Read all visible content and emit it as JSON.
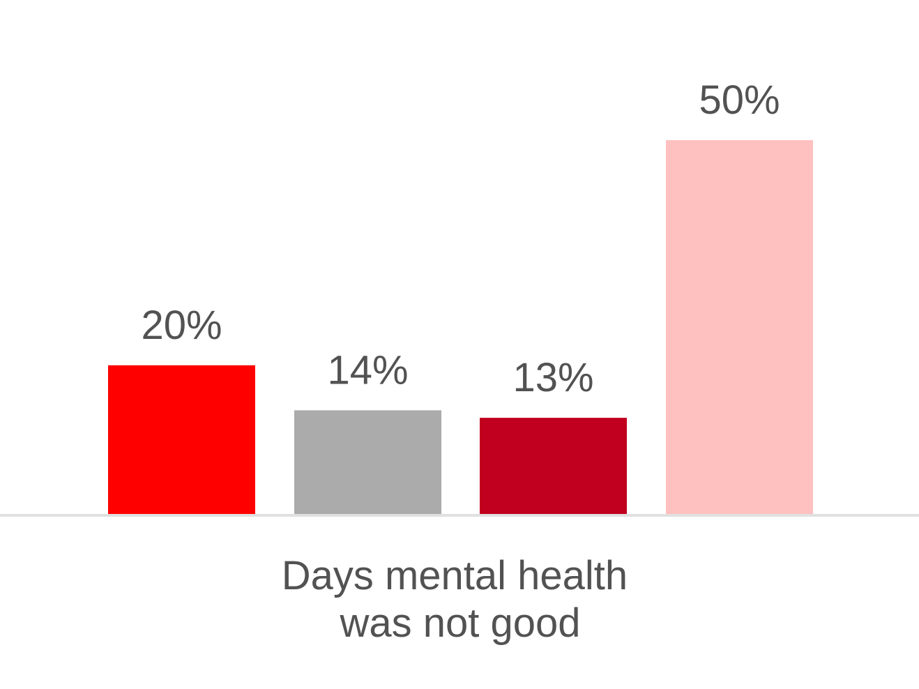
{
  "chart_data": {
    "type": "bar",
    "categories": [
      "Days mental health was not good"
    ],
    "category_label_lines": [
      "Days mental health",
      "was not good"
    ],
    "series": [
      {
        "value": 20,
        "label": "20%",
        "color": "#FF0000"
      },
      {
        "value": 14,
        "label": "14%",
        "color": "#ABABAB"
      },
      {
        "value": 13,
        "label": "13%",
        "color": "#C0001E"
      },
      {
        "value": 50,
        "label": "50%",
        "color": "#FFC0C0"
      }
    ],
    "unit": "%",
    "ylim": [
      0,
      55
    ],
    "grid": false,
    "legend": "none",
    "title": "",
    "xlabel": "",
    "ylabel": "",
    "text_color": "#525252",
    "axis_color": "#E0E0E0"
  }
}
